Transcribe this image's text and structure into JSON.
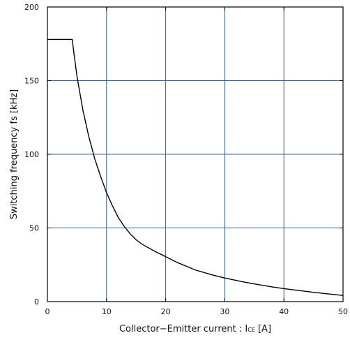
{
  "chart_data": {
    "type": "line",
    "xlabel_prefix": "Collector−Emitter current : I",
    "xlabel_sub": "CE",
    "xlabel_suffix": " [A]",
    "ylabel": "Switching frequency fs [kHz]",
    "xlim": [
      0,
      50
    ],
    "ylim": [
      0,
      200
    ],
    "x_ticks": [
      0,
      10,
      20,
      30,
      40,
      50
    ],
    "y_ticks": [
      0,
      50,
      100,
      150,
      200
    ],
    "grid": true,
    "grid_color": "#2f5fa8",
    "series": [
      {
        "x": [
          0,
          4.2,
          4.5,
          5,
          6,
          7,
          8,
          9,
          10,
          11,
          12,
          13,
          14,
          15,
          16,
          18,
          20,
          22,
          25,
          28,
          30,
          33,
          35,
          38,
          40,
          43,
          45,
          48,
          50
        ],
        "y": [
          178,
          178,
          168,
          153,
          130,
          112,
          97,
          85,
          74,
          65,
          57,
          51,
          46,
          42,
          39,
          34.5,
          30.5,
          26.5,
          21.5,
          18,
          16,
          13.5,
          12,
          10,
          8.8,
          7.3,
          6.3,
          5,
          4.2
        ]
      }
    ]
  }
}
